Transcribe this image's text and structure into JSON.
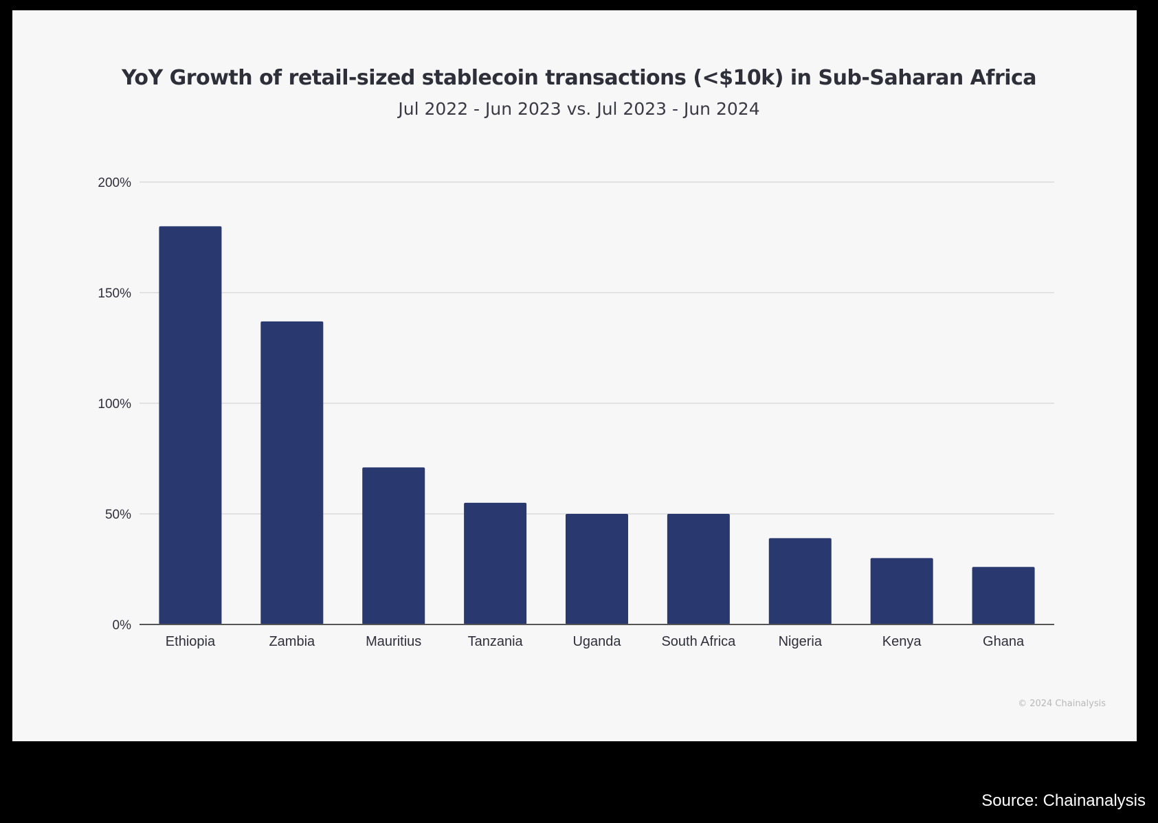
{
  "colors": {
    "background": "#000000",
    "panel": "#f7f7f7",
    "bar": "#29386f",
    "gridline": "#dcdcdc",
    "axis": "#555555",
    "text": "#2f2f3a"
  },
  "footer": {
    "watermark": "© 2024 Chainalysis",
    "source": "Source: Chainanalysis"
  },
  "chart_data": {
    "type": "bar",
    "title": "YoY Growth of retail-sized stablecoin transactions (<$10k) in Sub-Saharan Africa",
    "subtitle": "Jul 2022 - Jun 2023 vs. Jul 2023 - Jun 2024",
    "xlabel": "",
    "ylabel": "",
    "categories": [
      "Ethiopia",
      "Zambia",
      "Mauritius",
      "Tanzania",
      "Uganda",
      "South Africa",
      "Nigeria",
      "Kenya",
      "Ghana"
    ],
    "values": [
      180,
      137,
      71,
      55,
      50,
      50,
      39,
      30,
      26
    ],
    "ylim": [
      0,
      200
    ],
    "yticks": [
      0,
      50,
      100,
      150,
      200
    ],
    "ytick_labels": [
      "0%",
      "50%",
      "100%",
      "150%",
      "200%"
    ],
    "grid": true,
    "legend": "none"
  }
}
